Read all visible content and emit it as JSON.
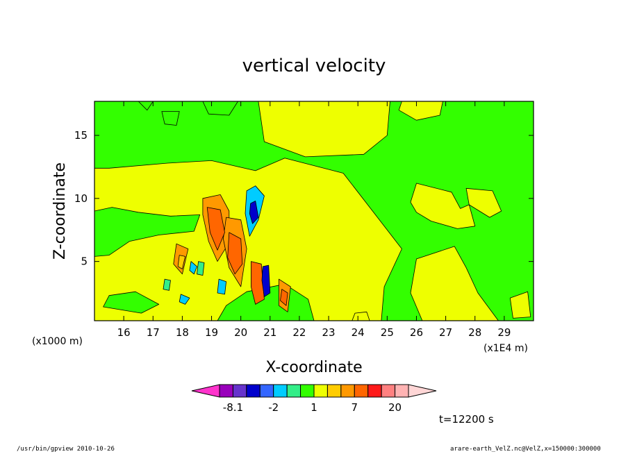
{
  "chart_data": {
    "type": "heatmap",
    "title": "vertical velocity",
    "xlabel": "X-coordinate",
    "ylabel": "Z-coordinate",
    "x_unit_left": "(x1000 m)",
    "x_unit_right": "(x1E4 m)",
    "x_ticks": [
      16,
      17,
      18,
      19,
      20,
      21,
      22,
      23,
      24,
      25,
      26,
      27,
      28,
      29
    ],
    "y_ticks": [
      5,
      10,
      15
    ],
    "xlim": [
      15,
      30
    ],
    "ylim": [
      0.3,
      17.7
    ],
    "time_label": "t=12200 s",
    "background_color": "#eeff00",
    "colorbar": {
      "colors": [
        "#ff33cc",
        "#9900bb",
        "#6633cc",
        "#0000cc",
        "#3366ff",
        "#00ccff",
        "#33ee88",
        "#33ff00",
        "#eeff00",
        "#ffcc00",
        "#ff9900",
        "#ff6600",
        "#ff1a1a",
        "#ff8080",
        "#ffb3b3",
        "#ffd6d6"
      ],
      "tick_labels": [
        "-8.1",
        "-2",
        "1",
        "7",
        "20"
      ]
    },
    "regions": [
      {
        "level": 1,
        "color": "#33ff00",
        "poly": [
          [
            15,
            17.7
          ],
          [
            30,
            17.7
          ],
          [
            30,
            0.3
          ],
          [
            24.8,
            0.3
          ],
          [
            24.9,
            3
          ],
          [
            25.5,
            6
          ],
          [
            24.5,
            9
          ],
          [
            23.5,
            12
          ],
          [
            21.5,
            13.2
          ],
          [
            20.5,
            12.2
          ],
          [
            19,
            13
          ],
          [
            17.5,
            12.8
          ],
          [
            15.5,
            12.4
          ],
          [
            15,
            12.4
          ]
        ]
      },
      {
        "level": 1,
        "color": "#33ff00",
        "poly": [
          [
            15,
            9
          ],
          [
            15.6,
            9.3
          ],
          [
            16.5,
            8.9
          ],
          [
            17.6,
            8.6
          ],
          [
            18.6,
            8.7
          ],
          [
            18.4,
            7.4
          ],
          [
            17.2,
            7.1
          ],
          [
            16.2,
            6.6
          ],
          [
            15.5,
            5.5
          ],
          [
            15,
            5.4
          ]
        ]
      },
      {
        "level": 1,
        "color": "#33ff00",
        "poly": [
          [
            15.3,
            1.4
          ],
          [
            16.6,
            0.9
          ],
          [
            17.2,
            1.6
          ],
          [
            16.4,
            2.6
          ],
          [
            15.5,
            2.3
          ]
        ]
      },
      {
        "level": 1,
        "color": "#33ff00",
        "poly": [
          [
            19.2,
            0.3
          ],
          [
            22.5,
            0.3
          ],
          [
            22.3,
            2
          ],
          [
            21.5,
            3.2
          ],
          [
            20.2,
            2.6
          ],
          [
            19.5,
            1.5
          ]
        ]
      },
      {
        "level": 1,
        "color": "#33ff00",
        "poly": [
          [
            17.3,
            16.9
          ],
          [
            17.9,
            16.9
          ],
          [
            17.8,
            15.8
          ],
          [
            17.4,
            15.9
          ]
        ]
      },
      {
        "level": 1,
        "color": "#33ff00",
        "poly": [
          [
            18.7,
            17.7
          ],
          [
            19.9,
            17.7
          ],
          [
            19.6,
            16.6
          ],
          [
            18.9,
            16.7
          ]
        ]
      },
      {
        "level": 1,
        "color": "#33ff00",
        "poly": [
          [
            16.5,
            17.7
          ],
          [
            17.0,
            17.7
          ],
          [
            16.8,
            17.0
          ]
        ]
      },
      {
        "level": 0,
        "color": "#eeff00",
        "poly": [
          [
            20.6,
            17.7
          ],
          [
            25.1,
            17.7
          ],
          [
            25.0,
            15
          ],
          [
            24.2,
            13.5
          ],
          [
            22.2,
            13.3
          ],
          [
            20.8,
            14.5
          ]
        ]
      },
      {
        "level": 0,
        "color": "#eeff00",
        "poly": [
          [
            25.5,
            17.7
          ],
          [
            26.9,
            17.7
          ],
          [
            26.8,
            16.6
          ],
          [
            26.0,
            16.2
          ],
          [
            25.4,
            17.0
          ]
        ]
      },
      {
        "level": 0,
        "color": "#eeff00",
        "poly": [
          [
            26.0,
            11.2
          ],
          [
            27.2,
            10.5
          ],
          [
            27.5,
            9.2
          ],
          [
            27.8,
            9.5
          ],
          [
            28.0,
            7.8
          ],
          [
            27.4,
            7.6
          ],
          [
            26.5,
            8.2
          ],
          [
            26.0,
            8.9
          ],
          [
            25.8,
            9.7
          ]
        ]
      },
      {
        "level": 0,
        "color": "#eeff00",
        "poly": [
          [
            27.7,
            10.8
          ],
          [
            28.6,
            10.6
          ],
          [
            28.9,
            9
          ],
          [
            28.5,
            8.5
          ],
          [
            27.8,
            9.5
          ]
        ]
      },
      {
        "level": 0,
        "color": "#eeff00",
        "poly": [
          [
            26.0,
            5.2
          ],
          [
            27.3,
            6.2
          ],
          [
            27.7,
            4.5
          ],
          [
            28.1,
            2.5
          ],
          [
            28.8,
            0.3
          ],
          [
            26.2,
            0.3
          ],
          [
            25.8,
            2.5
          ]
        ]
      },
      {
        "level": 0,
        "color": "#eeff00",
        "poly": [
          [
            29.2,
            2.1
          ],
          [
            29.8,
            2.6
          ],
          [
            29.9,
            0.6
          ],
          [
            29.3,
            0.5
          ]
        ]
      },
      {
        "level": 0,
        "color": "#eeff00",
        "poly": [
          [
            23.8,
            0.3
          ],
          [
            24.4,
            0.3
          ],
          [
            24.3,
            1.0
          ],
          [
            23.9,
            0.9
          ]
        ]
      },
      {
        "level": -1,
        "color": "#33ee88",
        "poly": [
          [
            18.55,
            5.0
          ],
          [
            18.75,
            4.9
          ],
          [
            18.7,
            3.9
          ],
          [
            18.5,
            4.0
          ]
        ]
      },
      {
        "level": -1,
        "color": "#33ee88",
        "poly": [
          [
            17.4,
            3.6
          ],
          [
            17.6,
            3.5
          ],
          [
            17.55,
            2.7
          ],
          [
            17.35,
            2.8
          ]
        ]
      },
      {
        "level": 5,
        "color": "#ff9900",
        "poly": [
          [
            18.7,
            10.0
          ],
          [
            19.3,
            10.3
          ],
          [
            19.6,
            9.0
          ],
          [
            19.6,
            6.5
          ],
          [
            19.2,
            5.0
          ],
          [
            18.9,
            6.6
          ],
          [
            18.7,
            8.7
          ]
        ]
      },
      {
        "level": 5,
        "color": "#ff9900",
        "poly": [
          [
            19.5,
            8.5
          ],
          [
            20.0,
            8.3
          ],
          [
            20.2,
            6.0
          ],
          [
            20.0,
            3.0
          ],
          [
            19.6,
            4.5
          ],
          [
            19.4,
            6.8
          ]
        ]
      },
      {
        "level": 5,
        "color": "#ff9900",
        "poly": [
          [
            17.8,
            6.4
          ],
          [
            18.2,
            6.0
          ],
          [
            18.0,
            4.0
          ],
          [
            17.7,
            4.8
          ]
        ]
      },
      {
        "level": 5,
        "color": "#ff9900",
        "poly": [
          [
            21.3,
            3.6
          ],
          [
            21.7,
            3.0
          ],
          [
            21.6,
            1.0
          ],
          [
            21.3,
            1.5
          ]
        ]
      },
      {
        "level": 9,
        "color": "#ff6600",
        "poly": [
          [
            18.85,
            9.3
          ],
          [
            19.3,
            9.1
          ],
          [
            19.45,
            7.3
          ],
          [
            19.2,
            5.9
          ],
          [
            18.95,
            7.3
          ]
        ]
      },
      {
        "level": 9,
        "color": "#ff6600",
        "poly": [
          [
            19.6,
            7.3
          ],
          [
            20.0,
            6.8
          ],
          [
            20.05,
            4.8
          ],
          [
            19.8,
            4.0
          ],
          [
            19.55,
            5.3
          ]
        ]
      },
      {
        "level": 9,
        "color": "#ff6600",
        "poly": [
          [
            20.35,
            5.0
          ],
          [
            20.7,
            4.8
          ],
          [
            20.8,
            2.0
          ],
          [
            20.5,
            1.6
          ],
          [
            20.35,
            3.0
          ]
        ]
      },
      {
        "level": 9,
        "color": "#ff6600",
        "poly": [
          [
            21.4,
            2.8
          ],
          [
            21.6,
            2.5
          ],
          [
            21.55,
            1.5
          ],
          [
            21.35,
            1.9
          ]
        ]
      },
      {
        "level": 6,
        "color": "#ffcc00",
        "poly": [
          [
            17.9,
            5.5
          ],
          [
            18.1,
            5.4
          ],
          [
            18.0,
            4.4
          ],
          [
            17.85,
            4.6
          ]
        ]
      },
      {
        "level": -2,
        "color": "#00ccff",
        "poly": [
          [
            20.2,
            10.6
          ],
          [
            20.5,
            11.0
          ],
          [
            20.8,
            10.2
          ],
          [
            20.6,
            8.3
          ],
          [
            20.3,
            7.0
          ],
          [
            20.15,
            8.8
          ]
        ]
      },
      {
        "level": -2,
        "color": "#00ccff",
        "poly": [
          [
            19.25,
            3.6
          ],
          [
            19.5,
            3.4
          ],
          [
            19.45,
            2.4
          ],
          [
            19.2,
            2.5
          ]
        ]
      },
      {
        "level": -2,
        "color": "#00ccff",
        "poly": [
          [
            17.95,
            2.4
          ],
          [
            18.25,
            2.1
          ],
          [
            18.1,
            1.6
          ],
          [
            17.9,
            1.8
          ]
        ]
      },
      {
        "level": -2,
        "color": "#00ccff",
        "poly": [
          [
            18.3,
            5.0
          ],
          [
            18.5,
            4.6
          ],
          [
            18.4,
            4.0
          ],
          [
            18.25,
            4.3
          ]
        ]
      },
      {
        "level": -5,
        "color": "#0000cc",
        "poly": [
          [
            20.33,
            9.6
          ],
          [
            20.5,
            9.8
          ],
          [
            20.6,
            8.5
          ],
          [
            20.4,
            8.0
          ],
          [
            20.3,
            8.8
          ]
        ]
      },
      {
        "level": -5,
        "color": "#0000cc",
        "poly": [
          [
            20.75,
            4.6
          ],
          [
            20.95,
            4.7
          ],
          [
            21.0,
            2.5
          ],
          [
            20.8,
            2.2
          ],
          [
            20.72,
            3.5
          ]
        ]
      }
    ]
  },
  "footer": {
    "left": "/usr/bin/gpview   2010-10-26",
    "right": "arare-earth_VelZ.nc@VelZ,x=150000:300000"
  }
}
